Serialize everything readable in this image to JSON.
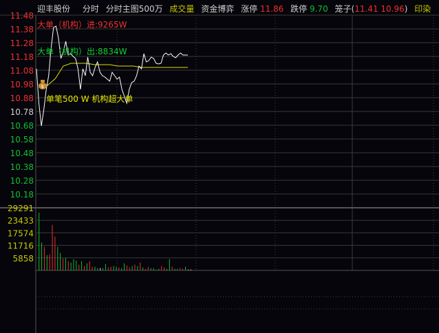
{
  "header": {
    "stock_name": "迎丰股份",
    "tab_intraday": "分时",
    "tab_main_chart": "分时主图500万",
    "tab_volume": "成交量",
    "tab_capital": "资金博弈",
    "limit_up_label": "涨停",
    "limit_up_value": "11.86",
    "limit_down_label": "跌停",
    "limit_down_value": "9.70",
    "cage_label": "笼子(",
    "cage_values": "11.41 10.96",
    "cage_close": ")",
    "sector": "印染"
  },
  "colors": {
    "up": "#f03030",
    "down": "#10c030",
    "price_line": "#ffffff",
    "avg_line": "#e0e000",
    "volume_axis": "#c8c800",
    "grid": "#3a3a3a"
  },
  "annotations": {
    "big_in": "大单（机构）进:9265W",
    "big_out": "大单（机构）出:8834W",
    "single": "单笔500 W 机构超大单",
    "marker_icon": "money-bag-icon"
  },
  "chart_data": [
    {
      "type": "line",
      "title": "",
      "price_ticks": [
        "11.48",
        "11.38",
        "11.28",
        "11.18",
        "11.08",
        "10.98",
        "10.88",
        "10.78",
        "10.68",
        "10.58",
        "10.48",
        "10.38",
        "10.28",
        "10.18"
      ],
      "ylim": [
        10.18,
        11.48
      ],
      "reference_price": 10.78,
      "series": [
        {
          "key": "price",
          "values": [
            11.09,
            10.84,
            10.675,
            10.79,
            10.94,
            11.04,
            11.24,
            11.39,
            11.4,
            11.315,
            11.165,
            11.215,
            11.29,
            11.19,
            11.2,
            11.18,
            11.165,
            11.09,
            10.94,
            11.09,
            11.04,
            11.175,
            11.065,
            11.04,
            11.1,
            11.14,
            11.065,
            11.04,
            11.03,
            11.015,
            11.0,
            11.065,
            11.04,
            11.015,
            11.03,
            10.94,
            10.89,
            10.84,
            10.94,
            10.99,
            11.0,
            11.04,
            11.11,
            11.09,
            11.2,
            11.14,
            11.15,
            11.175,
            11.165,
            11.13,
            11.125,
            11.13,
            11.19,
            11.205,
            11.19,
            11.2,
            11.18,
            11.17,
            11.19,
            11.205,
            11.19,
            11.19,
            11.19
          ]
        },
        {
          "key": "average",
          "values": [
            10.97,
            10.97,
            11.02,
            11.11,
            11.13,
            11.13,
            11.13,
            11.12,
            11.12,
            11.12,
            11.11,
            11.11,
            11.11,
            11.1,
            11.1,
            11.1,
            11.1,
            11.1,
            11.1,
            11.1
          ]
        }
      ]
    },
    {
      "type": "bar",
      "title": "",
      "volume_ticks": [
        "29291",
        "23433",
        "17574",
        "11716",
        "5858"
      ],
      "ylim": [
        0,
        29291
      ],
      "bars": [
        [
          27050,
          "down"
        ],
        [
          13040,
          "down"
        ],
        [
          11010,
          "up"
        ],
        [
          7160,
          "down"
        ],
        [
          7480,
          "up"
        ],
        [
          21270,
          "up"
        ],
        [
          15820,
          "up"
        ],
        [
          11010,
          "down"
        ],
        [
          8120,
          "down"
        ],
        [
          5560,
          "up"
        ],
        [
          5880,
          "down"
        ],
        [
          4280,
          "up"
        ],
        [
          3640,
          "down"
        ],
        [
          5240,
          "down"
        ],
        [
          4600,
          "down"
        ],
        [
          2670,
          "up"
        ],
        [
          4280,
          "down"
        ],
        [
          2030,
          "up"
        ],
        [
          3310,
          "down"
        ],
        [
          4280,
          "up"
        ],
        [
          1710,
          "up"
        ],
        [
          1710,
          "down"
        ],
        [
          1070,
          "down"
        ],
        [
          1070,
          "flat"
        ],
        [
          1070,
          "down"
        ],
        [
          2990,
          "down"
        ],
        [
          1390,
          "up"
        ],
        [
          1710,
          "up"
        ],
        [
          2030,
          "down"
        ],
        [
          1710,
          "down"
        ],
        [
          1390,
          "up"
        ],
        [
          1070,
          "down"
        ],
        [
          3310,
          "down"
        ],
        [
          2350,
          "up"
        ],
        [
          1390,
          "up"
        ],
        [
          2030,
          "down"
        ],
        [
          2670,
          "up"
        ],
        [
          2030,
          "down"
        ],
        [
          3640,
          "up"
        ],
        [
          1390,
          "down"
        ],
        [
          750,
          "up"
        ],
        [
          1710,
          "up"
        ],
        [
          1070,
          "down"
        ],
        [
          1070,
          "down"
        ],
        [
          430,
          "up"
        ],
        [
          750,
          "down"
        ],
        [
          2030,
          "up"
        ],
        [
          1390,
          "up"
        ],
        [
          750,
          "down"
        ],
        [
          5240,
          "down"
        ],
        [
          1710,
          "up"
        ],
        [
          750,
          "down"
        ],
        [
          750,
          "down"
        ],
        [
          1070,
          "up"
        ],
        [
          750,
          "up"
        ],
        [
          1710,
          "down"
        ],
        [
          430,
          "flat"
        ],
        [
          430,
          "flat"
        ]
      ]
    }
  ]
}
